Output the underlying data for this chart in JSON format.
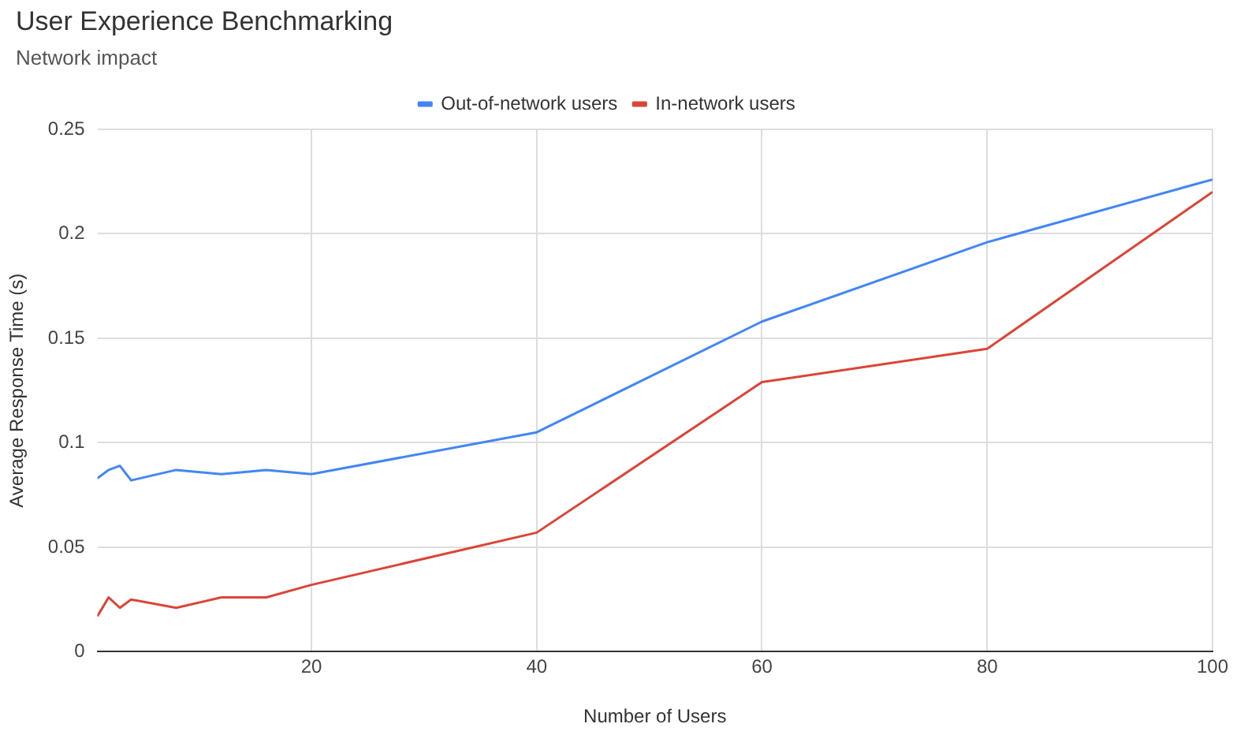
{
  "chart_data": {
    "type": "line",
    "title": "User Experience Benchmarking",
    "subtitle": "Network impact",
    "xlabel": "Number of Users",
    "ylabel": "Average Response Time (s)",
    "x": [
      1,
      2,
      3,
      4,
      8,
      12,
      16,
      20,
      40,
      60,
      80,
      100
    ],
    "series": [
      {
        "name": "Out-of-network users",
        "color": "#4285f4",
        "values": [
          0.083,
          0.087,
          0.089,
          0.082,
          0.087,
          0.085,
          0.087,
          0.085,
          0.105,
          0.158,
          0.196,
          0.226
        ]
      },
      {
        "name": "In-network users",
        "color": "#db4437",
        "values": [
          0.017,
          0.026,
          0.021,
          0.025,
          0.021,
          0.026,
          0.026,
          0.032,
          0.057,
          0.129,
          0.145,
          0.22
        ]
      }
    ],
    "xlim": [
      1,
      100
    ],
    "xticks": [
      20,
      40,
      60,
      80,
      100
    ],
    "ylim": [
      0,
      0.25
    ],
    "yticks": [
      0,
      0.05,
      0.1,
      0.15,
      0.2,
      0.25
    ],
    "grid": true,
    "legend": "top",
    "marker": "none",
    "line_style": "solid"
  }
}
